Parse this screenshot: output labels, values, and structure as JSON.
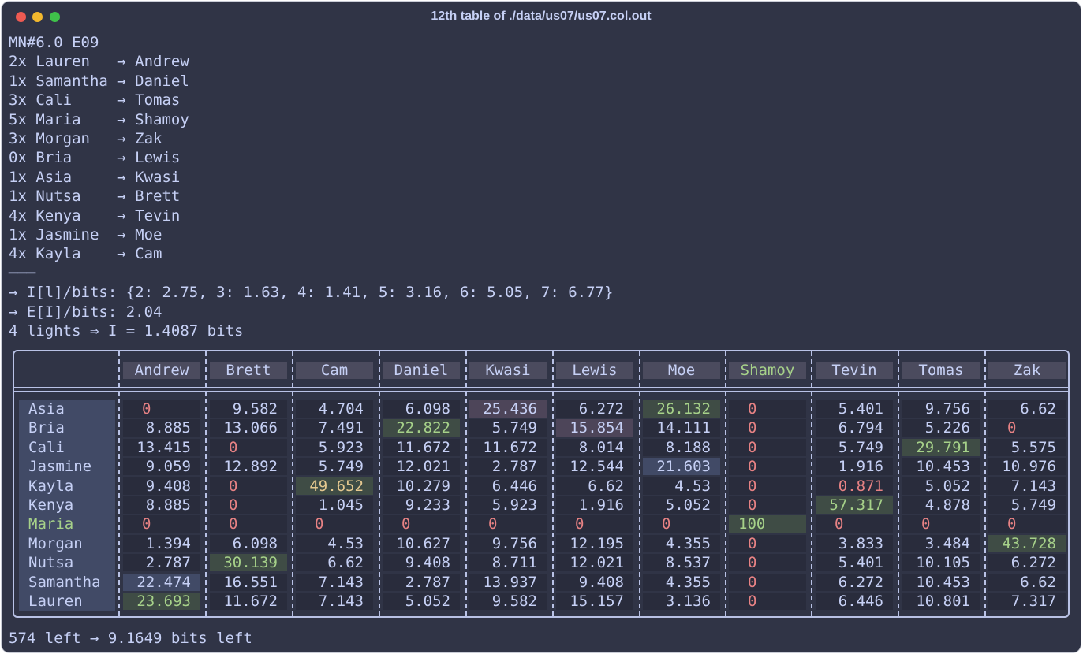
{
  "window": {
    "title": "12th table of ./data/us07/us07.col.out"
  },
  "header_lines": [
    "MN#6.0 E09",
    "2x Lauren   → Andrew",
    "1x Samantha → Daniel",
    "3x Cali     → Tomas",
    "5x Maria    → Shamoy",
    "3x Morgan   → Zak",
    "0x Bria     → Lewis",
    "1x Asia     → Kwasi",
    "1x Nutsa    → Brett",
    "4x Kenya    → Tevin",
    "1x Jasmine  → Moe",
    "4x Kayla    → Cam",
    "───",
    "→ I[l]/bits: {2: 2.75, 3: 1.63, 4: 1.41, 5: 3.16, 6: 5.05, 7: 6.77}",
    "→ E[I]/bits: 2.04",
    "4 lights ⇒ I = 1.4087 bits"
  ],
  "table": {
    "columns": [
      "Andrew",
      "Brett",
      "Cam",
      "Daniel",
      "Kwasi",
      "Lewis",
      "Moe",
      "Shamoy",
      "Tevin",
      "Tomas",
      "Zak"
    ],
    "highlight_column": "Shamoy",
    "rows": [
      {
        "label": "Asia",
        "values": [
          "0",
          "9.582",
          "4.704",
          "6.098",
          "25.436",
          "6.272",
          "26.132",
          "0",
          "5.401",
          "9.756",
          "6.62"
        ]
      },
      {
        "label": "Bria",
        "values": [
          "8.885",
          "13.066",
          "7.491",
          "22.822",
          "5.749",
          "15.854",
          "14.111",
          "0",
          "6.794",
          "5.226",
          "0"
        ]
      },
      {
        "label": "Cali",
        "values": [
          "13.415",
          "0",
          "5.923",
          "11.672",
          "11.672",
          "8.014",
          "8.188",
          "0",
          "5.749",
          "29.791",
          "5.575"
        ]
      },
      {
        "label": "Jasmine",
        "values": [
          "9.059",
          "12.892",
          "5.749",
          "12.021",
          "2.787",
          "12.544",
          "21.603",
          "0",
          "1.916",
          "10.453",
          "10.976"
        ]
      },
      {
        "label": "Kayla",
        "values": [
          "9.408",
          "0",
          "49.652",
          "10.279",
          "6.446",
          "6.62",
          "4.53",
          "0",
          "0.871",
          "5.052",
          "7.143"
        ]
      },
      {
        "label": "Kenya",
        "values": [
          "8.885",
          "0",
          "1.045",
          "9.233",
          "5.923",
          "1.916",
          "5.052",
          "0",
          "57.317",
          "4.878",
          "5.749"
        ]
      },
      {
        "label": "Maria",
        "values": [
          "0",
          "0",
          "0",
          "0",
          "0",
          "0",
          "0",
          "100",
          "0",
          "0",
          "0"
        ]
      },
      {
        "label": "Morgan",
        "values": [
          "1.394",
          "6.098",
          "4.53",
          "10.627",
          "9.756",
          "12.195",
          "4.355",
          "0",
          "3.833",
          "3.484",
          "43.728"
        ]
      },
      {
        "label": "Nutsa",
        "values": [
          "2.787",
          "30.139",
          "6.62",
          "9.408",
          "8.711",
          "12.021",
          "8.537",
          "0",
          "5.401",
          "10.105",
          "6.272"
        ]
      },
      {
        "label": "Samantha",
        "values": [
          "22.474",
          "16.551",
          "7.143",
          "2.787",
          "13.937",
          "9.408",
          "4.355",
          "0",
          "6.272",
          "10.453",
          "6.62"
        ]
      },
      {
        "label": "Lauren",
        "values": [
          "23.693",
          "11.672",
          "7.143",
          "5.052",
          "9.582",
          "15.157",
          "3.136",
          "0",
          "6.446",
          "10.801",
          "7.317"
        ]
      }
    ],
    "highlight_row": "Maria"
  },
  "footer": "574 left → 9.1649 bits left",
  "colors": {
    "background": "#303446",
    "text": "#c6d0f5",
    "zero": "#e78284",
    "green_text": "#a6d189",
    "yellow_text": "#e5c890",
    "green_bg": "#3f4c45",
    "blue_bg": "#414a66",
    "mauve_bg": "#4d4559"
  }
}
